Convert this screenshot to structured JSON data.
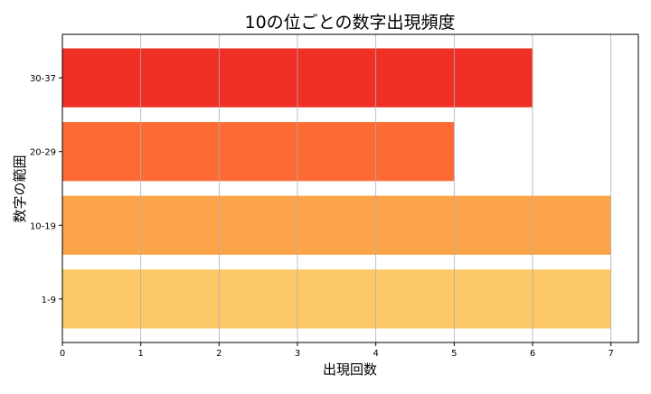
{
  "chart_data": {
    "type": "bar",
    "orientation": "horizontal",
    "title": "10の位ごとの数字出現頻度",
    "xlabel": "出現回数",
    "ylabel": "数字の範囲",
    "categories": [
      "1-9",
      "10-19",
      "20-29",
      "30-37"
    ],
    "values": [
      7,
      7,
      5,
      6
    ],
    "colors": [
      "#fdc966",
      "#fca44a",
      "#fd6a33",
      "#ee3124"
    ],
    "xlim": [
      0,
      7.35
    ],
    "xticks": [
      "0",
      "1",
      "2",
      "3",
      "4",
      "5",
      "6",
      "7"
    ],
    "grid": "x",
    "legend": "none"
  }
}
